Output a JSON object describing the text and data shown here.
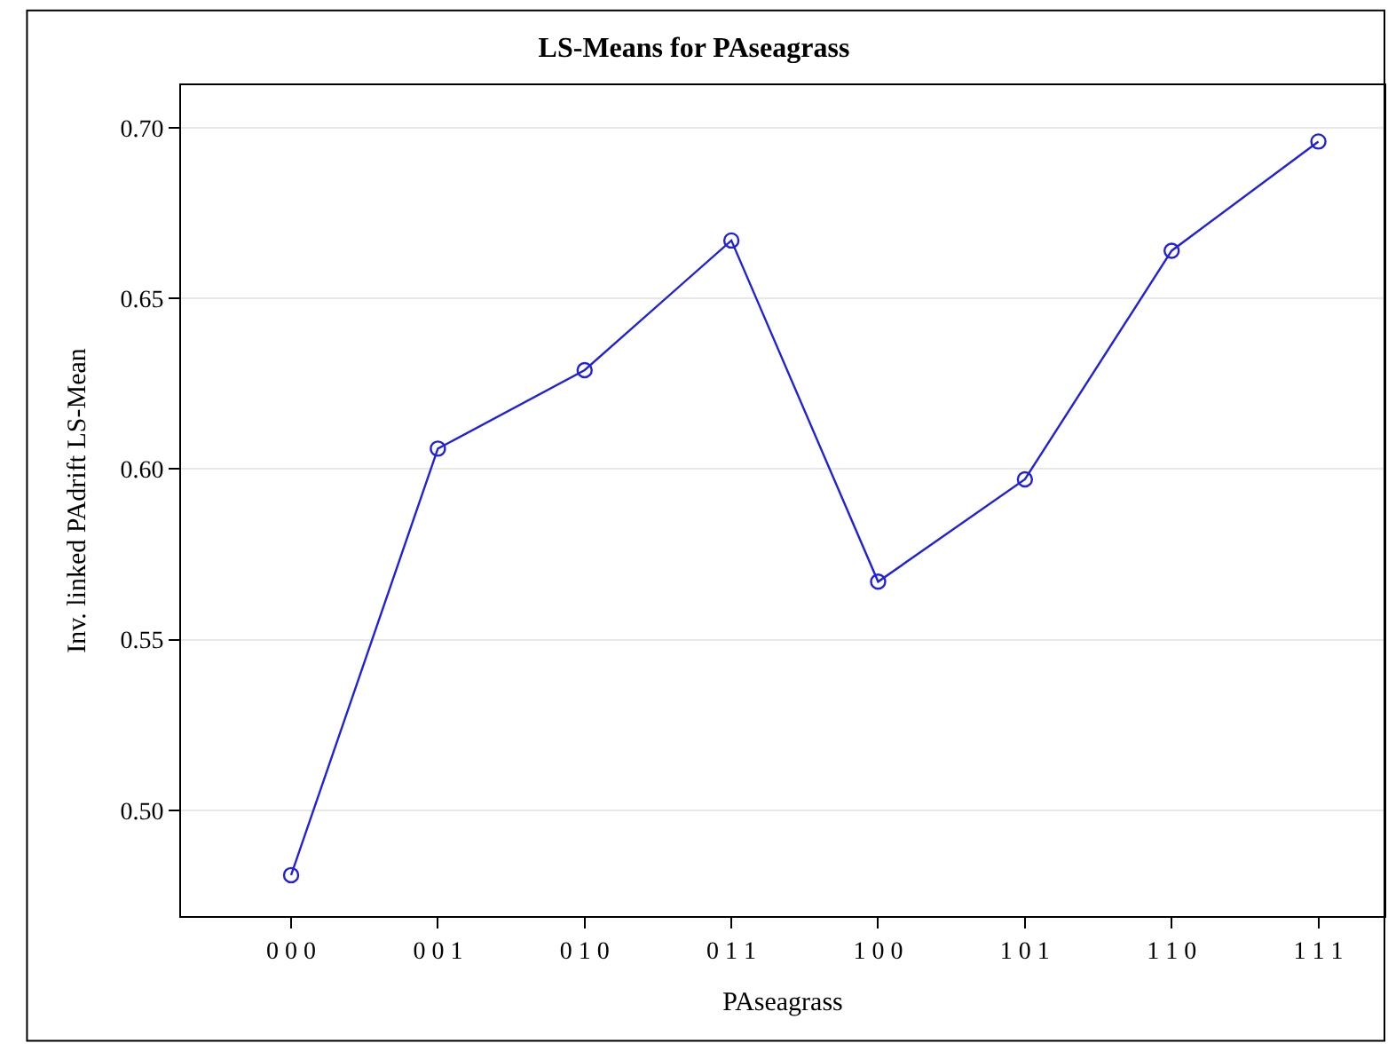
{
  "chart_data": {
    "type": "line",
    "title": "LS-Means for PAseagrass",
    "xlabel": "PAseagrass",
    "ylabel": "Inv. linked PAdrift LS-Mean",
    "categories": [
      "0 0 0",
      "0 0 1",
      "0 1 0",
      "0 1 1",
      "1 0 0",
      "1 0 1",
      "1 1 0",
      "1 1 1"
    ],
    "series": [
      {
        "color": "#2020e0",
        "values": [
          0.481,
          0.606,
          0.629,
          0.667,
          0.567,
          0.597,
          0.664,
          0.696
        ]
      }
    ],
    "ylim": [
      0.469,
      0.7125
    ],
    "yticks": [
      {
        "value": 0.5,
        "label": "0.50"
      },
      {
        "value": 0.55,
        "label": "0.55"
      },
      {
        "value": 0.6,
        "label": "0.60"
      },
      {
        "value": 0.65,
        "label": "0.65"
      },
      {
        "value": 0.7,
        "label": "0.70"
      }
    ],
    "grid": "y",
    "marker": "circle",
    "line_style": "solid"
  }
}
